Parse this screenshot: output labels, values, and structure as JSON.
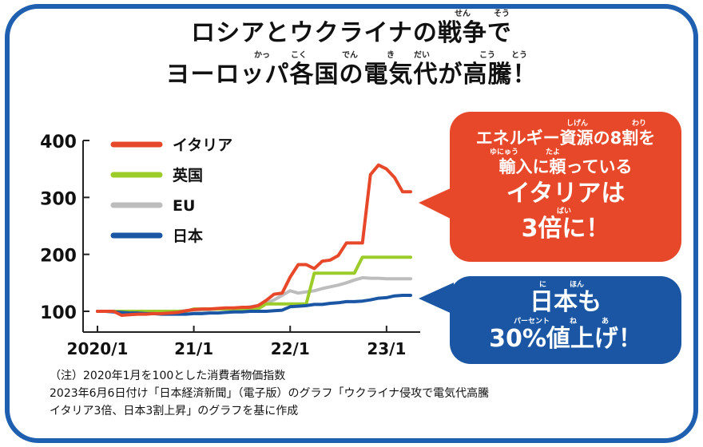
{
  "title": {
    "line1": "ロシアとウクライナの戦争で",
    "line2": "ヨーロッパ各国の電気代が高騰！",
    "ruby1": [
      "せん",
      "そう"
    ],
    "ruby2": [
      "かっ",
      "こく",
      "でん",
      "き",
      "だい",
      "こう",
      "とう"
    ]
  },
  "callouts": {
    "italy": {
      "ruby_a": [
        "しげん",
        "わり"
      ],
      "line1": "エネルギー資源の8割を",
      "ruby_b": [
        "ゆにゅう",
        "たよ"
      ],
      "line2": "輸入に頼っている",
      "line3": "イタリアは",
      "ruby_c": "ばい",
      "line4": "3倍に！",
      "color": "#e8482a"
    },
    "japan": {
      "ruby_a": [
        "に",
        "ほん"
      ],
      "line1": "日本も",
      "ruby_b": [
        "パーセント",
        "ね",
        "あ"
      ],
      "line2": "30%値上げ！",
      "color": "#1a56a4"
    }
  },
  "note": {
    "line1": "（注）2020年1月を100とした消費者物価指数",
    "line2": "2023年6月6日付け「日本経済新聞」（電子版）のグラフ「ウクライナ侵攻で電気代高騰",
    "line3": "イタリア3倍、日本3割上昇」のグラフを基に作成"
  },
  "chart_data": {
    "type": "line",
    "title": "",
    "xlabel": "",
    "ylabel": "",
    "x": [
      "2020/1",
      "2020/2",
      "2020/3",
      "2020/4",
      "2020/5",
      "2020/6",
      "2020/7",
      "2020/8",
      "2020/9",
      "2020/10",
      "2020/11",
      "2020/12",
      "2021/1",
      "2021/2",
      "2021/3",
      "2021/4",
      "2021/5",
      "2021/6",
      "2021/7",
      "2021/8",
      "2021/9",
      "2021/10",
      "2021/11",
      "2021/12",
      "2022/1",
      "2022/2",
      "2022/3",
      "2022/4",
      "2022/5",
      "2022/6",
      "2022/7",
      "2022/8",
      "2022/9",
      "2022/10",
      "2022/11",
      "2022/12",
      "2023/1",
      "2023/2",
      "2023/3",
      "2023/4"
    ],
    "xticks": [
      "2020/1",
      "21/1",
      "22/1",
      "23/1"
    ],
    "yticks": [
      100,
      200,
      300,
      400
    ],
    "ylim": [
      90,
      400
    ],
    "legend_position": "top-left",
    "series": [
      {
        "name": "イタリア",
        "color": "#e8482a",
        "values": [
          100,
          100,
          100,
          93,
          94,
          95,
          95,
          96,
          96,
          97,
          98,
          101,
          103,
          104,
          104,
          105,
          106,
          106,
          107,
          107,
          110,
          119,
          130,
          132,
          160,
          182,
          182,
          175,
          188,
          190,
          198,
          220,
          220,
          220,
          340,
          357,
          350,
          335,
          310,
          310
        ]
      },
      {
        "name": "英国",
        "color": "#9ccc2a",
        "values": [
          100,
          100,
          100,
          100,
          100,
          100,
          100,
          100,
          100,
          100,
          100,
          100,
          104,
          104,
          104,
          104,
          104,
          104,
          104,
          104,
          104,
          113,
          113,
          113,
          113,
          113,
          113,
          167,
          167,
          167,
          167,
          167,
          167,
          195,
          195,
          195,
          195,
          195,
          195,
          195
        ]
      },
      {
        "name": "EU",
        "color": "#bdbdbd",
        "values": [
          100,
          100,
          100,
          99,
          99,
          99,
          99,
          99,
          99,
          100,
          100,
          101,
          102,
          102,
          103,
          104,
          104,
          105,
          106,
          108,
          110,
          114,
          120,
          128,
          136,
          132,
          134,
          136,
          140,
          143,
          146,
          150,
          155,
          159,
          158,
          158,
          157,
          157,
          157,
          157
        ]
      },
      {
        "name": "日本",
        "color": "#1a56a4",
        "values": [
          100,
          100,
          99,
          98,
          97,
          97,
          96,
          96,
          95,
          95,
          95,
          95,
          96,
          96,
          97,
          97,
          98,
          99,
          99,
          100,
          100,
          100,
          101,
          102,
          108,
          109,
          110,
          112,
          112,
          114,
          115,
          117,
          117,
          118,
          120,
          123,
          124,
          127,
          128,
          128
        ]
      }
    ]
  }
}
